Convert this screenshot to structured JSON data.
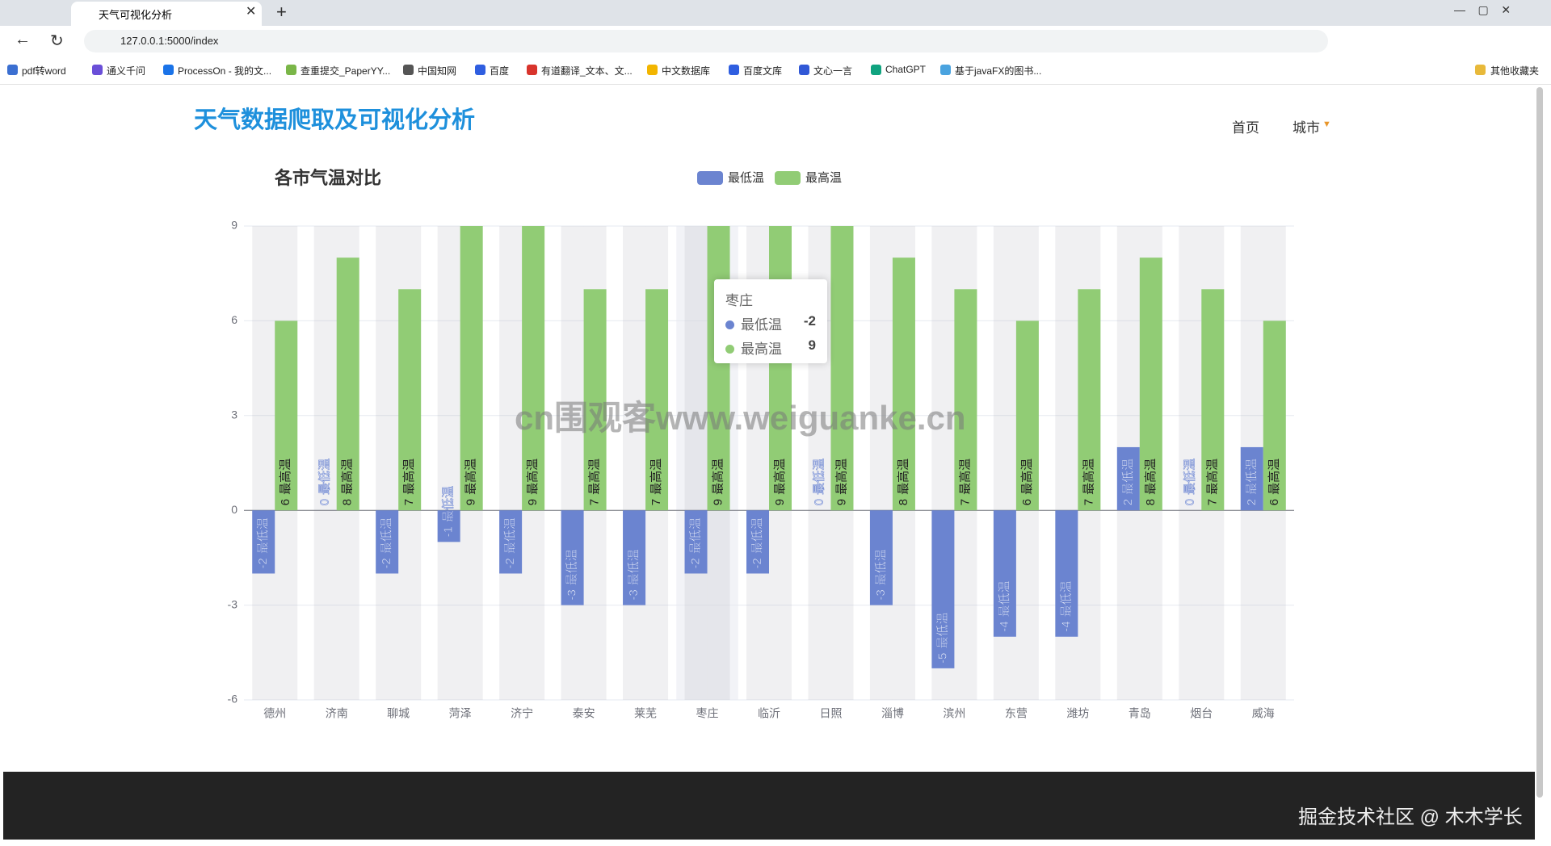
{
  "browser": {
    "tab_title": "天气可视化分析",
    "url": "127.0.0.1:5000/index",
    "bookmarks": [
      "pdf转word",
      "通义千问",
      "ProcessOn - 我的文...",
      "查重提交_PaperYY...",
      "中国知网",
      "百度",
      "有道翻译_文本、文...",
      "中文数据库",
      "百度文库",
      "文心一言",
      "ChatGPT",
      "基于javaFX的图书..."
    ],
    "other_bookmarks": "其他收藏夹"
  },
  "page": {
    "site_title": "天气数据爬取及可视化分析",
    "nav": [
      "首页",
      "城市"
    ],
    "watermark": "cn围观客www.weiguanke.cn",
    "footer": "掘金技术社区 @ 木木学长"
  },
  "chart_data": {
    "type": "bar",
    "title": "各市气温对比",
    "categories": [
      "德州",
      "济南",
      "聊城",
      "菏泽",
      "济宁",
      "泰安",
      "莱芜",
      "枣庄",
      "临沂",
      "日照",
      "淄博",
      "滨州",
      "东营",
      "潍坊",
      "青岛",
      "烟台",
      "威海"
    ],
    "series": [
      {
        "name": "最低温",
        "color": "#6b84d0",
        "values": [
          -2,
          0,
          -2,
          -1,
          -2,
          -3,
          -3,
          -2,
          -2,
          0,
          -3,
          -5,
          -4,
          -4,
          2,
          0,
          2
        ]
      },
      {
        "name": "最高温",
        "color": "#91cc75",
        "values": [
          6,
          8,
          7,
          9,
          9,
          7,
          7,
          9,
          9,
          9,
          8,
          7,
          6,
          7,
          8,
          7,
          6
        ]
      }
    ],
    "ylim": [
      -6,
      9
    ],
    "yticks": [
      -6,
      -3,
      0,
      3,
      6,
      9
    ],
    "grid": true,
    "legend": "top"
  }
}
